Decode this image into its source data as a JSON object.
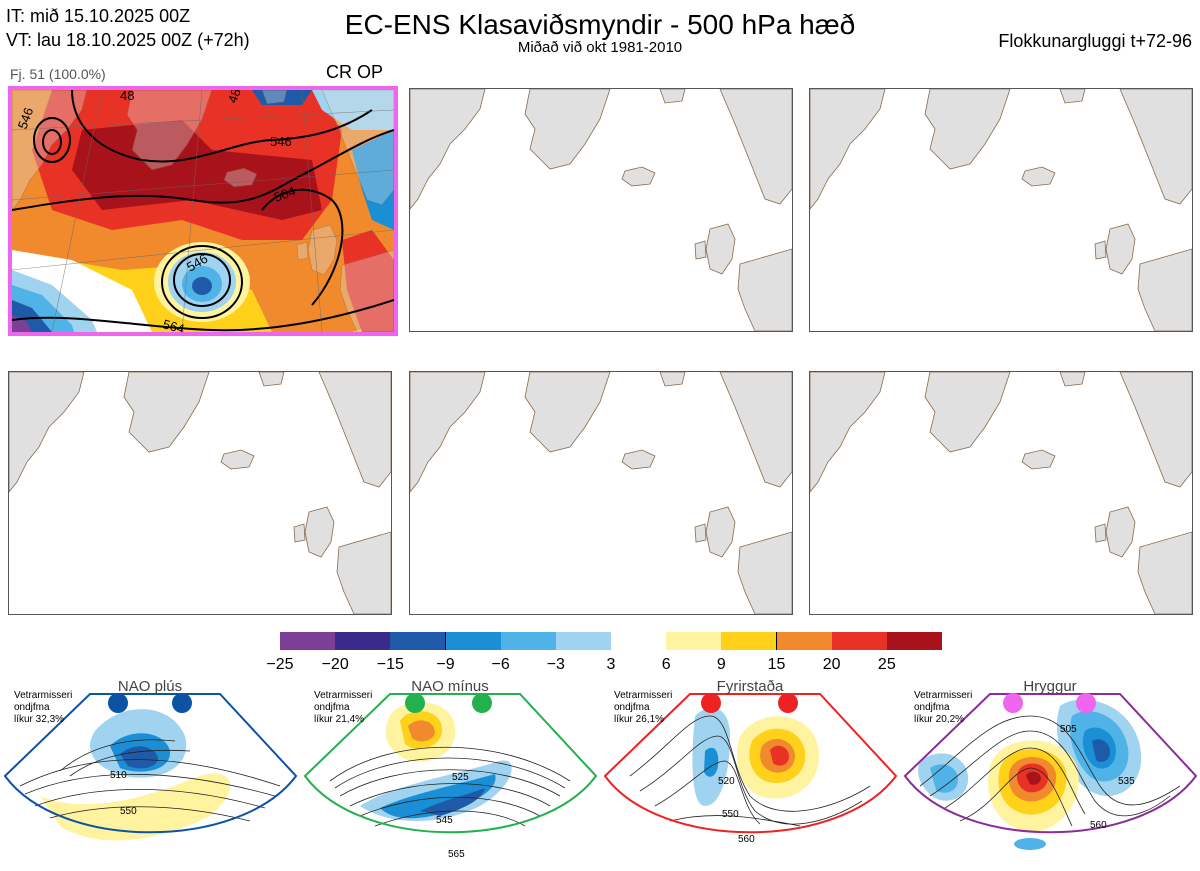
{
  "header": {
    "it_line": "IT: mið 15.10.2025 00Z",
    "vt_line": "VT: lau 18.10.2025 00Z  (+72h)",
    "title": "EC-ENS Klasaviðsmyndir - 500 hPa hæð",
    "subtitle": "Miðað við okt 1981-2010",
    "window": "Flokkunargluggi t+72-96"
  },
  "cluster": {
    "label": "Fj. 51 (100.0%)",
    "tag": "CR OP",
    "contour_labels": [
      "546",
      "546",
      "564",
      "546",
      "564",
      "48",
      "48"
    ]
  },
  "colorbar": {
    "ticks": [
      "−25",
      "−20",
      "−15",
      "−9",
      "−6",
      "−3",
      "3",
      "6",
      "9",
      "15",
      "20",
      "25"
    ],
    "colors": [
      "#7b3f96",
      "#3c2a8a",
      "#1f5aa8",
      "#1a8fd6",
      "#4fb3e8",
      "#9fd3f0",
      "#ffffff",
      "#fff3a0",
      "#ffd11a",
      "#f08a2c",
      "#e83225",
      "#a8131b"
    ]
  },
  "regimes": [
    {
      "name": "NAO plús",
      "season": "Vetrarmisseri",
      "mean": "ondjfma",
      "prob": "líkur 32,3%",
      "color": "#0c52a5",
      "labels": [
        "510",
        "550"
      ]
    },
    {
      "name": "NAO mínus",
      "season": "Vetrarmisseri",
      "mean": "ondjfma",
      "prob": "líkur 21,4%",
      "color": "#22b14c",
      "labels": [
        "525",
        "545",
        "565"
      ]
    },
    {
      "name": "Fyrirstaða",
      "season": "Vetrarmisseri",
      "mean": "ondjfma",
      "prob": "líkur 26,1%",
      "color": "#ee2222",
      "labels": [
        "520",
        "550",
        "560"
      ]
    },
    {
      "name": "Hryggur",
      "season": "Vetrarmisseri",
      "mean": "ondjfma",
      "prob": "líkur 20,2%",
      "color": "#ee66ee",
      "labels": [
        "505",
        "535",
        "560"
      ]
    }
  ]
}
